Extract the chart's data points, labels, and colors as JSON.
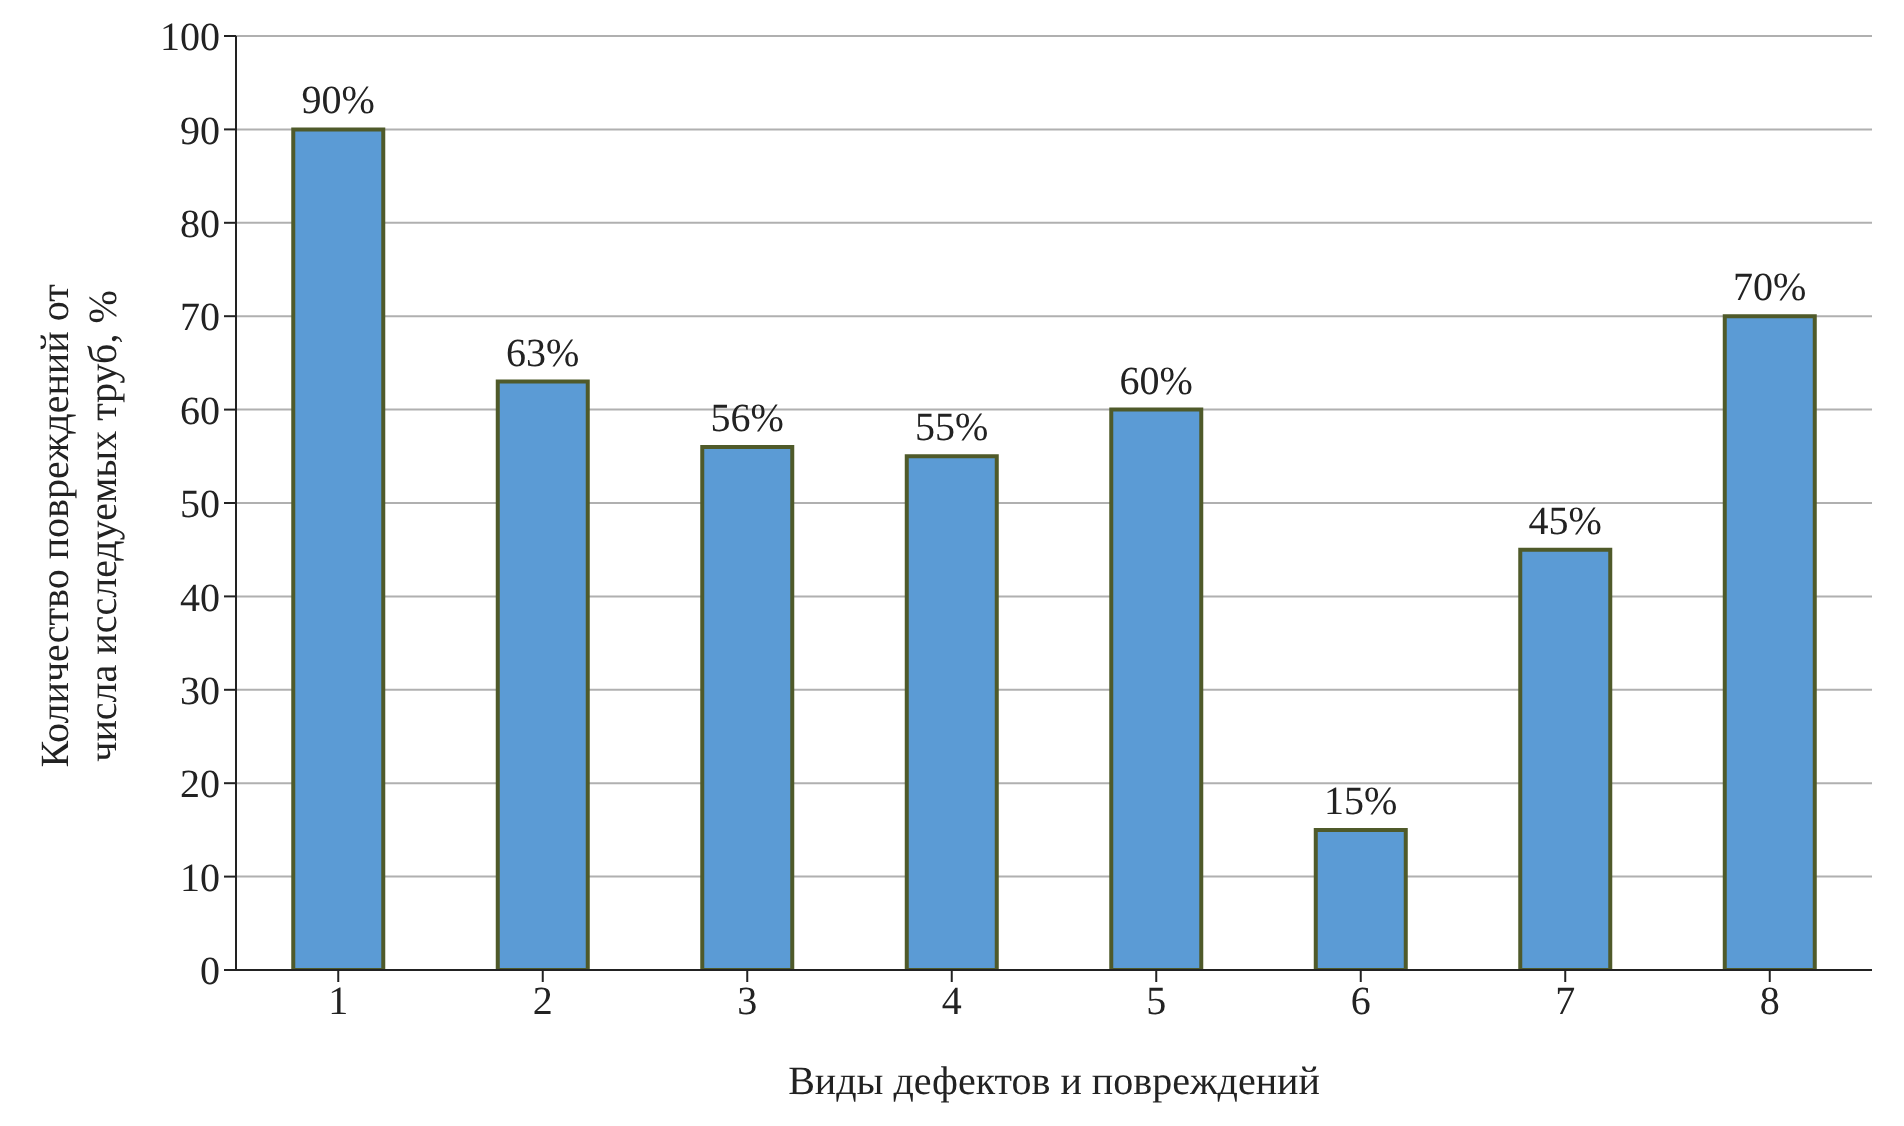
{
  "chart_data": {
    "type": "bar",
    "xlabel": "Виды дефектов и повреждений",
    "ylabel": "Количество повреждений от числа исследуемых  труб, %",
    "categories": [
      "1",
      "2",
      "3",
      "4",
      "5",
      "6",
      "7",
      "8"
    ],
    "values": [
      90,
      63,
      56,
      55,
      60,
      15,
      45,
      70
    ],
    "value_labels": [
      "90%",
      "63%",
      "56%",
      "55%",
      "60%",
      "15%",
      "45%",
      "70%"
    ],
    "color": "#5b9bd5",
    "ylim": [
      0,
      100
    ],
    "yticks": [
      0,
      10,
      20,
      30,
      40,
      50,
      60,
      70,
      80,
      90,
      100
    ],
    "grid": "y"
  }
}
